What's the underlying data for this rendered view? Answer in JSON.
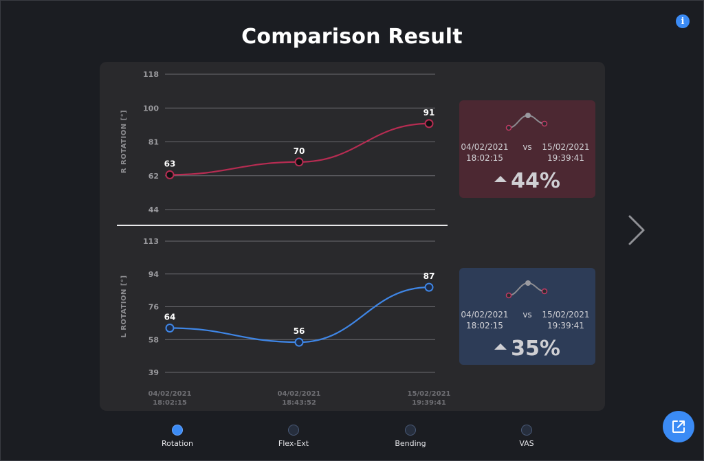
{
  "title": "Comparison Result",
  "info_icon": "info-icon",
  "colors": {
    "red": "#b72c52",
    "blue": "#3f86e6",
    "accent": "#3b8bf5"
  },
  "chart_data": [
    {
      "type": "line",
      "ylabel": "R ROTATION [°]",
      "yticks": [
        "118",
        "100",
        "81",
        "62",
        "44"
      ],
      "ylim": [
        44,
        118
      ],
      "x": [
        "04/02/2021 18:02:15",
        "04/02/2021 18:43:52",
        "15/02/2021 19:39:41"
      ],
      "values": [
        63,
        70,
        91
      ],
      "labels": [
        "63",
        "70",
        "91"
      ],
      "color": "#b72c52"
    },
    {
      "type": "line",
      "ylabel": "L ROTATION [°]",
      "yticks": [
        "113",
        "94",
        "76",
        "58",
        "39"
      ],
      "ylim": [
        39,
        113
      ],
      "x": [
        "04/02/2021 18:02:15",
        "04/02/2021 18:43:52",
        "15/02/2021 19:39:41"
      ],
      "values": [
        64,
        56,
        87
      ],
      "labels": [
        "64",
        "56",
        "87"
      ],
      "color": "#3f86e6"
    }
  ],
  "xaxis": {
    "labels": [
      {
        "date": "04/02/2021",
        "time": "18:02:15"
      },
      {
        "date": "04/02/2021",
        "time": "18:43:52"
      },
      {
        "date": "15/02/2021",
        "time": "19:39:41"
      }
    ]
  },
  "cards": [
    {
      "from_date": "04/02/2021",
      "from_time": "18:02:15",
      "vs": "vs",
      "to_date": "15/02/2021",
      "to_time": "19:39:41",
      "change": "44%",
      "direction": "up"
    },
    {
      "from_date": "04/02/2021",
      "from_time": "18:02:15",
      "vs": "vs",
      "to_date": "15/02/2021",
      "to_time": "19:39:41",
      "change": "35%",
      "direction": "up"
    }
  ],
  "next_icon": "chevron-right-icon",
  "tabs": [
    {
      "label": "Rotation",
      "active": true
    },
    {
      "label": "Flex-Ext",
      "active": false
    },
    {
      "label": "Bending",
      "active": false
    },
    {
      "label": "VAS",
      "active": false
    }
  ],
  "export_icon": "external-link-icon"
}
